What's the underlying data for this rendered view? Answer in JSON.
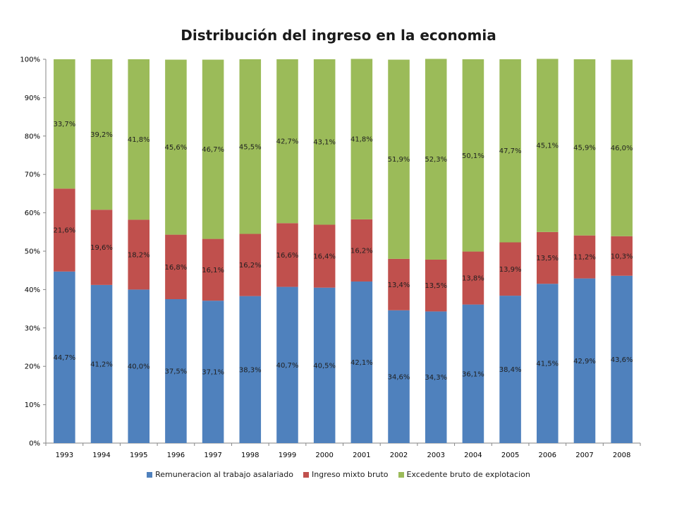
{
  "chart_data": {
    "type": "bar",
    "stacked": true,
    "title": "Distribución del ingreso en la economia",
    "categories": [
      "1993",
      "1994",
      "1995",
      "1996",
      "1997",
      "1998",
      "1999",
      "2000",
      "2001",
      "2002",
      "2003",
      "2004",
      "2005",
      "2006",
      "2007",
      "2008"
    ],
    "ylim": [
      0,
      100
    ],
    "yticks": [
      "0%",
      "10%",
      "20%",
      "30%",
      "40%",
      "50%",
      "60%",
      "70%",
      "80%",
      "90%",
      "100%"
    ],
    "grid": false,
    "legend_position": "bottom",
    "series": [
      {
        "name": "Remuneracion al trabajo asalariado",
        "color": "#4F81BD",
        "values": [
          44.7,
          41.2,
          40.0,
          37.5,
          37.1,
          38.3,
          40.7,
          40.5,
          42.1,
          34.6,
          34.3,
          36.1,
          38.4,
          41.5,
          42.9,
          43.6
        ],
        "labels": [
          "44,7%",
          "41,2%",
          "40,0%",
          "37,5%",
          "37,1%",
          "38,3%",
          "40,7%",
          "40,5%",
          "42,1%",
          "34,6%",
          "34,3%",
          "36,1%",
          "38,4%",
          "41,5%",
          "42,9%",
          "43,6%"
        ]
      },
      {
        "name": "Ingreso mixto bruto",
        "color": "#C0504D",
        "values": [
          21.6,
          19.6,
          18.2,
          16.8,
          16.1,
          16.2,
          16.6,
          16.4,
          16.2,
          13.4,
          13.5,
          13.8,
          13.9,
          13.5,
          11.2,
          10.3
        ],
        "labels": [
          "21,6%",
          "19,6%",
          "18,2%",
          "16,8%",
          "16,1%",
          "16,2%",
          "16,6%",
          "16,4%",
          "16,2%",
          "13,4%",
          "13,5%",
          "13,8%",
          "13,9%",
          "13,5%",
          "11,2%",
          "10,3%"
        ]
      },
      {
        "name": "Excedente bruto de explotacion",
        "color": "#9BBB59",
        "values": [
          33.7,
          39.2,
          41.8,
          45.6,
          46.7,
          45.5,
          42.7,
          43.1,
          41.8,
          51.9,
          52.3,
          50.1,
          47.7,
          45.1,
          45.9,
          46.0
        ],
        "labels": [
          "33,7%",
          "39,2%",
          "41,8%",
          "45,6%",
          "46,7%",
          "45,5%",
          "42,7%",
          "43,1%",
          "41,8%",
          "51,9%",
          "52,3%",
          "50,1%",
          "47,7%",
          "45,1%",
          "45,9%",
          "46,0%"
        ]
      }
    ]
  }
}
